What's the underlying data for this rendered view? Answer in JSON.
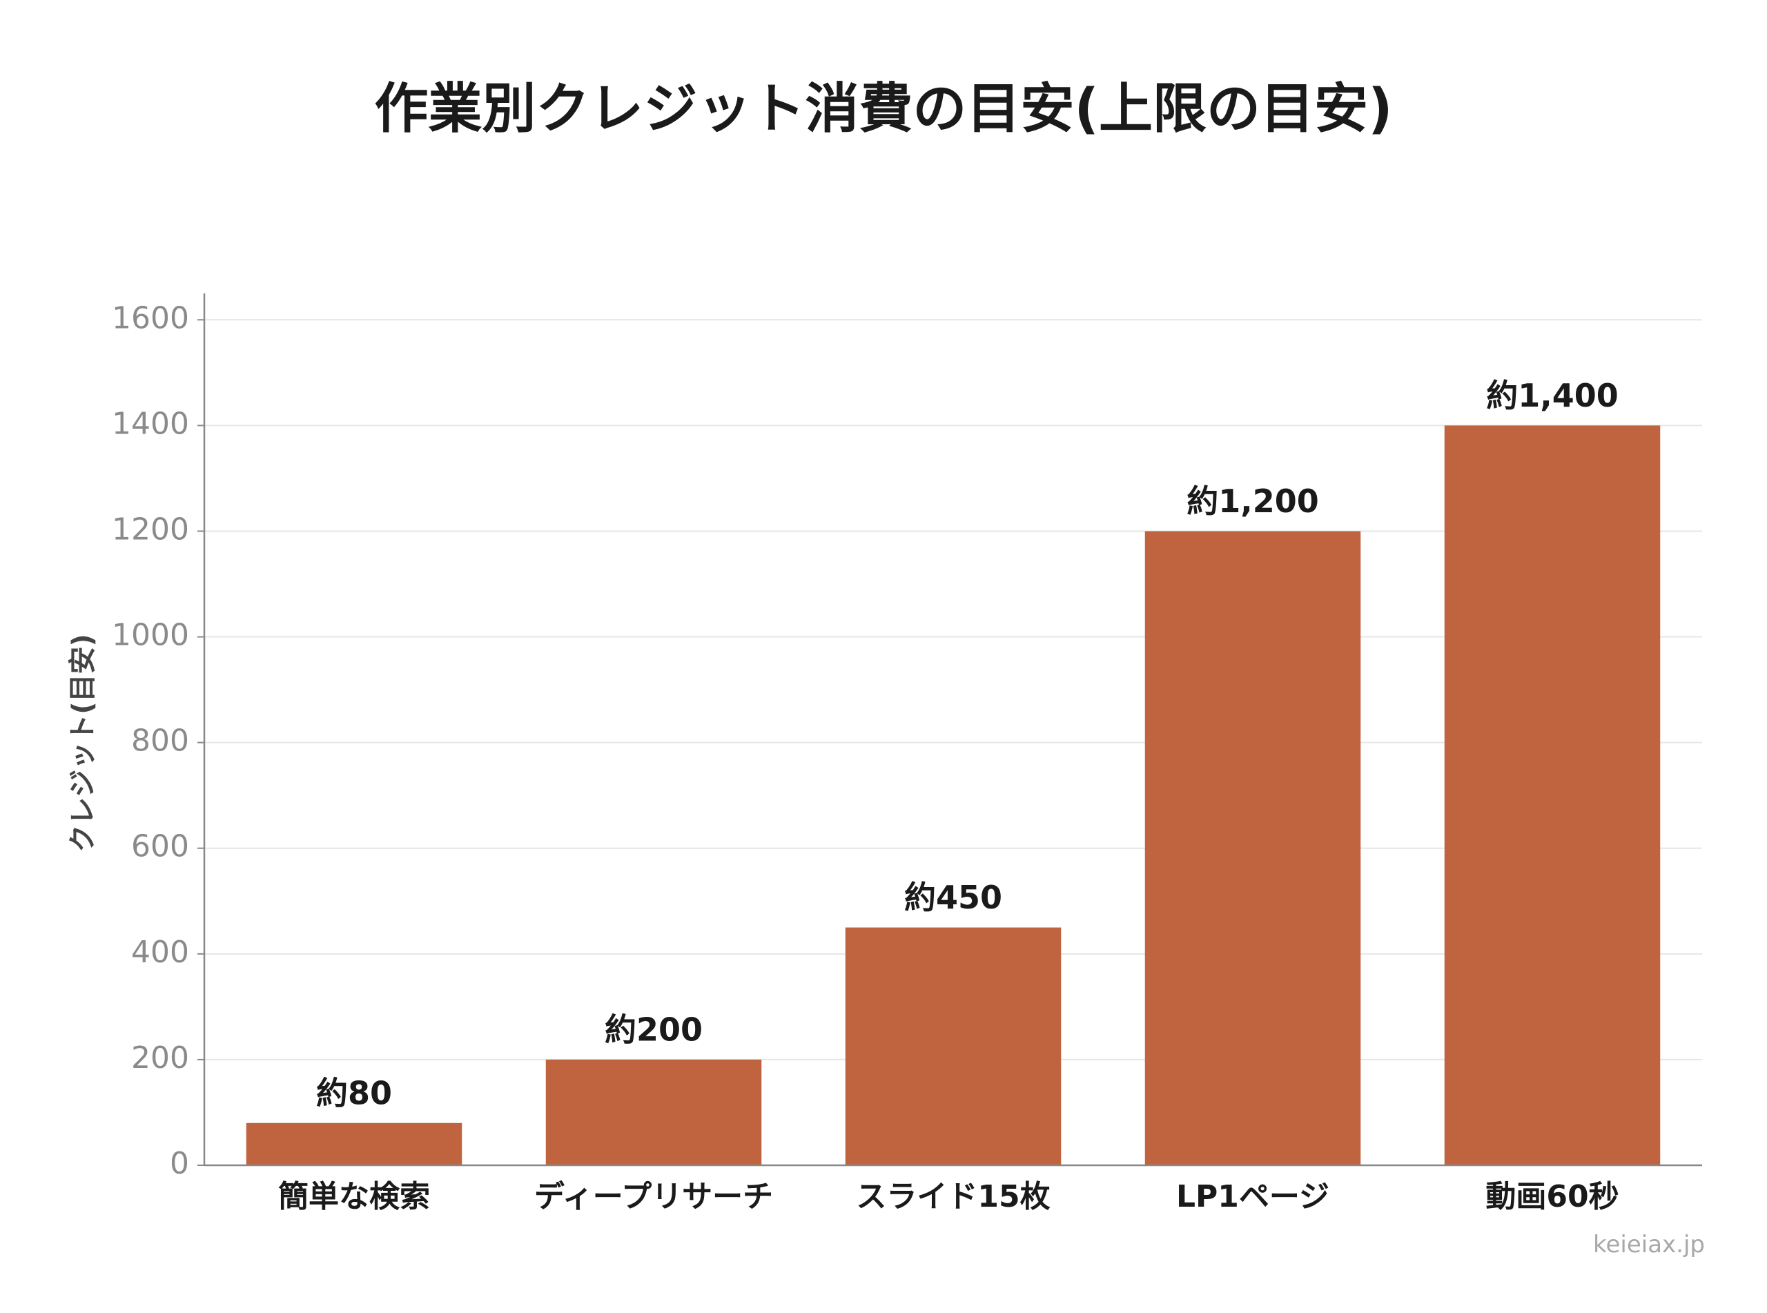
{
  "chart_data": {
    "type": "bar",
    "title": "作業別クレジット消費の目安(上限の目安)",
    "ylabel": "クレジット(目安)",
    "xlabel": "",
    "categories": [
      "簡単な検索",
      "ディープリサーチ",
      "スライド15枚",
      "LP1ページ",
      "動画60秒"
    ],
    "values": [
      80,
      200,
      450,
      1200,
      1400
    ],
    "data_labels": [
      "約80",
      "約200",
      "約450",
      "約1,200",
      "約1,400"
    ],
    "ylim": [
      0,
      1650
    ],
    "yticks": [
      0,
      200,
      400,
      600,
      800,
      1000,
      1200,
      1400,
      1600
    ],
    "grid": true,
    "legend": "none",
    "bar_color": "#c0633f"
  },
  "watermark": "keieiax.jp"
}
